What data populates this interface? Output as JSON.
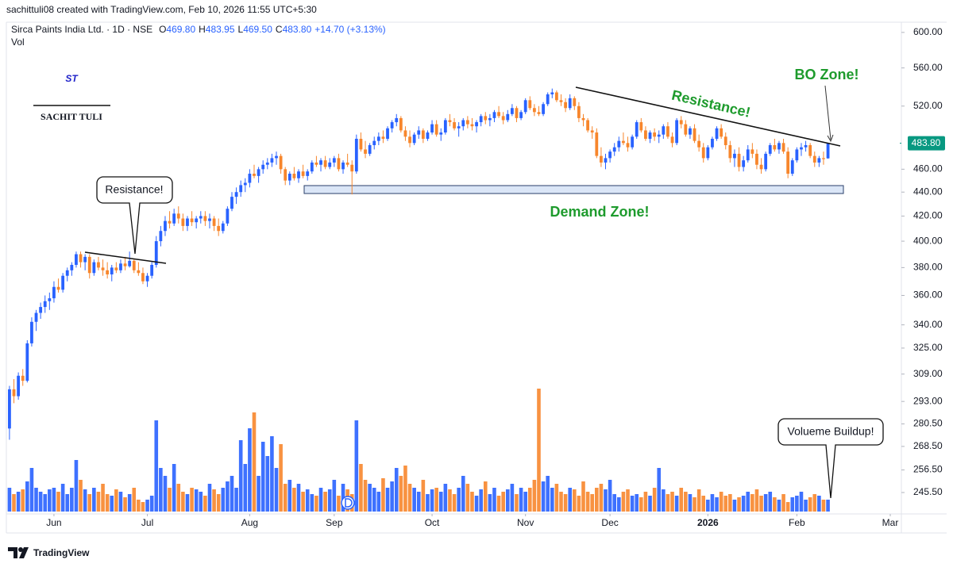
{
  "header": {
    "created": "sachittuli08 created with TradingView.com, Feb 10, 2026 11:55 UTC+5:30"
  },
  "logo": {
    "mark": "ST",
    "name": "SACHIT TULI"
  },
  "footer": {
    "brand": "TradingView"
  },
  "annotations": {
    "resistance_left": "Resistance!",
    "resistance_right": "Resistance!",
    "bo_zone": "BO Zone!",
    "demand_zone": "Demand Zone!",
    "volume_buildup": "Volueme Buildup!"
  },
  "chart_data": {
    "type": "candlestick",
    "title": "Sirca Paints India Ltd. · 1D · NSE",
    "ohlc_legend": [
      {
        "key": "O",
        "value": 469.8,
        "label": "469.80"
      },
      {
        "key": "H",
        "value": 483.95,
        "label": "483.95"
      },
      {
        "key": "L",
        "value": 469.5,
        "label": "469.50"
      },
      {
        "key": "C",
        "value": 483.8,
        "label": "483.80"
      }
    ],
    "change": "+14.70 (+3.13%)",
    "volume_label": "Vol",
    "up_color": "#2962ff",
    "down_color": "#f7862c",
    "log_scale": true,
    "grid": false,
    "xlim": [
      -0.7,
      200.5
    ],
    "xticks": [
      {
        "value": 10,
        "label": "Jun"
      },
      {
        "value": 31,
        "label": "Jul"
      },
      {
        "value": 54,
        "label": "Aug"
      },
      {
        "value": 73,
        "label": "Sep"
      },
      {
        "value": 95,
        "label": "Oct"
      },
      {
        "value": 116,
        "label": "Nov"
      },
      {
        "value": 135,
        "label": "Dec"
      },
      {
        "value": 157,
        "label": "2026"
      },
      {
        "value": 177,
        "label": "Feb"
      },
      {
        "value": 198,
        "label": "Mar"
      }
    ],
    "ylim": [
      235.5,
      612
    ],
    "yticks": [
      {
        "value": 600,
        "label": "600.00"
      },
      {
        "value": 560,
        "label": "560.00"
      },
      {
        "value": 520,
        "label": "520.00"
      },
      {
        "value": 460,
        "label": "460.00"
      },
      {
        "value": 440,
        "label": "440.00"
      },
      {
        "value": 420,
        "label": "420.00"
      },
      {
        "value": 400,
        "label": "400.00"
      },
      {
        "value": 380,
        "label": "380.00"
      },
      {
        "value": 360,
        "label": "360.00"
      },
      {
        "value": 340,
        "label": "340.00"
      },
      {
        "value": 325,
        "label": "325.00"
      },
      {
        "value": 309,
        "label": "309.00"
      },
      {
        "value": 293,
        "label": "293.00"
      },
      {
        "value": 280.5,
        "label": "280.50"
      },
      {
        "value": 268.5,
        "label": "268.50"
      },
      {
        "value": 256.5,
        "label": "256.50"
      },
      {
        "value": 245.5,
        "label": "245.50"
      }
    ],
    "last_price": {
      "value": 483.8,
      "label": "483.80",
      "color": "#089981"
    },
    "candles": [
      [
        278,
        302,
        272,
        300
      ],
      [
        300,
        306,
        292,
        296
      ],
      [
        296,
        310,
        294,
        308
      ],
      [
        308,
        312,
        302,
        305
      ],
      [
        305,
        330,
        304,
        328
      ],
      [
        328,
        345,
        326,
        342
      ],
      [
        342,
        350,
        336,
        348
      ],
      [
        348,
        355,
        344,
        352
      ],
      [
        352,
        360,
        348,
        356
      ],
      [
        356,
        362,
        350,
        358
      ],
      [
        358,
        370,
        355,
        366
      ],
      [
        366,
        372,
        362,
        364
      ],
      [
        364,
        376,
        362,
        374
      ],
      [
        374,
        380,
        370,
        378
      ],
      [
        378,
        384,
        374,
        382
      ],
      [
        382,
        392,
        380,
        390
      ],
      [
        390,
        392,
        380,
        384
      ],
      [
        384,
        390,
        378,
        388
      ],
      [
        388,
        390,
        372,
        376
      ],
      [
        376,
        386,
        374,
        384
      ],
      [
        384,
        388,
        378,
        380
      ],
      [
        380,
        386,
        374,
        378
      ],
      [
        378,
        384,
        372,
        375
      ],
      [
        375,
        382,
        370,
        380
      ],
      [
        380,
        384,
        376,
        378
      ],
      [
        378,
        386,
        376,
        383
      ],
      [
        383,
        388,
        378,
        381
      ],
      [
        381,
        392,
        380,
        385
      ],
      [
        385,
        386,
        376,
        378
      ],
      [
        378,
        384,
        374,
        376
      ],
      [
        376,
        380,
        368,
        370
      ],
      [
        370,
        376,
        366,
        374
      ],
      [
        374,
        384,
        372,
        382
      ],
      [
        382,
        404,
        380,
        400
      ],
      [
        400,
        412,
        396,
        408
      ],
      [
        408,
        420,
        404,
        416
      ],
      [
        416,
        424,
        410,
        414
      ],
      [
        414,
        426,
        412,
        422
      ],
      [
        422,
        428,
        414,
        418
      ],
      [
        418,
        422,
        408,
        412
      ],
      [
        412,
        420,
        408,
        418
      ],
      [
        418,
        424,
        412,
        415
      ],
      [
        415,
        420,
        410,
        418
      ],
      [
        418,
        424,
        414,
        420
      ],
      [
        420,
        424,
        412,
        416
      ],
      [
        416,
        422,
        410,
        418
      ],
      [
        418,
        420,
        408,
        412
      ],
      [
        412,
        418,
        404,
        408
      ],
      [
        408,
        416,
        406,
        414
      ],
      [
        414,
        428,
        412,
        426
      ],
      [
        426,
        440,
        424,
        436
      ],
      [
        436,
        444,
        430,
        440
      ],
      [
        440,
        450,
        436,
        446
      ],
      [
        446,
        452,
        440,
        448
      ],
      [
        448,
        460,
        444,
        456
      ],
      [
        456,
        464,
        452,
        454
      ],
      [
        454,
        462,
        448,
        460
      ],
      [
        460,
        468,
        456,
        464
      ],
      [
        464,
        470,
        460,
        466
      ],
      [
        466,
        474,
        462,
        470
      ],
      [
        470,
        476,
        464,
        472
      ],
      [
        472,
        474,
        456,
        460
      ],
      [
        460,
        462,
        446,
        450
      ],
      [
        450,
        458,
        446,
        456
      ],
      [
        456,
        462,
        450,
        452
      ],
      [
        452,
        460,
        448,
        458
      ],
      [
        458,
        464,
        452,
        454
      ],
      [
        454,
        460,
        450,
        458
      ],
      [
        458,
        468,
        456,
        466
      ],
      [
        466,
        472,
        462,
        464
      ],
      [
        464,
        470,
        458,
        468
      ],
      [
        468,
        472,
        460,
        462
      ],
      [
        462,
        470,
        460,
        466
      ],
      [
        466,
        472,
        462,
        470
      ],
      [
        470,
        474,
        458,
        460
      ],
      [
        460,
        468,
        456,
        466
      ],
      [
        466,
        474,
        462,
        464
      ],
      [
        464,
        468,
        438,
        458
      ],
      [
        458,
        492,
        456,
        488
      ],
      [
        488,
        494,
        476,
        478
      ],
      [
        478,
        486,
        470,
        474
      ],
      [
        474,
        484,
        472,
        482
      ],
      [
        482,
        490,
        478,
        486
      ],
      [
        486,
        494,
        482,
        490
      ],
      [
        490,
        496,
        484,
        488
      ],
      [
        488,
        500,
        486,
        498
      ],
      [
        498,
        506,
        494,
        504
      ],
      [
        504,
        512,
        500,
        508
      ],
      [
        508,
        510,
        494,
        496
      ],
      [
        496,
        500,
        486,
        490
      ],
      [
        490,
        496,
        480,
        484
      ],
      [
        484,
        494,
        482,
        492
      ],
      [
        492,
        500,
        488,
        496
      ],
      [
        496,
        498,
        484,
        488
      ],
      [
        488,
        496,
        486,
        494
      ],
      [
        494,
        506,
        492,
        502
      ],
      [
        502,
        506,
        490,
        492
      ],
      [
        492,
        498,
        486,
        494
      ],
      [
        494,
        508,
        492,
        506
      ],
      [
        506,
        512,
        500,
        504
      ],
      [
        504,
        508,
        496,
        498
      ],
      [
        498,
        504,
        490,
        500
      ],
      [
        500,
        508,
        496,
        506
      ],
      [
        506,
        510,
        498,
        502
      ],
      [
        502,
        508,
        496,
        500
      ],
      [
        500,
        506,
        494,
        504
      ],
      [
        504,
        512,
        500,
        510
      ],
      [
        510,
        514,
        502,
        506
      ],
      [
        506,
        512,
        500,
        508
      ],
      [
        508,
        516,
        504,
        514
      ],
      [
        514,
        520,
        508,
        510
      ],
      [
        510,
        514,
        502,
        506
      ],
      [
        506,
        516,
        504,
        512
      ],
      [
        512,
        522,
        510,
        518
      ],
      [
        518,
        520,
        504,
        508
      ],
      [
        508,
        516,
        506,
        514
      ],
      [
        514,
        528,
        512,
        526
      ],
      [
        526,
        530,
        516,
        518
      ],
      [
        518,
        522,
        510,
        514
      ],
      [
        514,
        520,
        510,
        512
      ],
      [
        512,
        524,
        510,
        522
      ],
      [
        522,
        534,
        520,
        532
      ],
      [
        532,
        538,
        528,
        534
      ],
      [
        534,
        536,
        524,
        526
      ],
      [
        526,
        532,
        520,
        524
      ],
      [
        524,
        528,
        514,
        518
      ],
      [
        518,
        532,
        516,
        528
      ],
      [
        528,
        530,
        516,
        520
      ],
      [
        520,
        524,
        504,
        508
      ],
      [
        508,
        512,
        500,
        506
      ],
      [
        506,
        508,
        494,
        496
      ],
      [
        496,
        500,
        488,
        494
      ],
      [
        494,
        498,
        470,
        472
      ],
      [
        472,
        480,
        462,
        466
      ],
      [
        466,
        474,
        460,
        470
      ],
      [
        470,
        478,
        466,
        476
      ],
      [
        476,
        484,
        472,
        480
      ],
      [
        480,
        490,
        476,
        486
      ],
      [
        486,
        494,
        482,
        484
      ],
      [
        484,
        490,
        476,
        480
      ],
      [
        480,
        492,
        478,
        490
      ],
      [
        490,
        506,
        488,
        504
      ],
      [
        504,
        508,
        494,
        496
      ],
      [
        496,
        500,
        486,
        488
      ],
      [
        488,
        496,
        484,
        494
      ],
      [
        494,
        498,
        486,
        490
      ],
      [
        490,
        496,
        484,
        492
      ],
      [
        492,
        502,
        488,
        500
      ],
      [
        500,
        504,
        488,
        490
      ],
      [
        490,
        494,
        480,
        484
      ],
      [
        484,
        508,
        482,
        506
      ],
      [
        506,
        510,
        498,
        502
      ],
      [
        502,
        506,
        490,
        492
      ],
      [
        492,
        500,
        488,
        498
      ],
      [
        498,
        502,
        484,
        486
      ],
      [
        486,
        492,
        476,
        480
      ],
      [
        480,
        484,
        466,
        470
      ],
      [
        470,
        482,
        468,
        480
      ],
      [
        480,
        490,
        478,
        488
      ],
      [
        488,
        500,
        486,
        498
      ],
      [
        498,
        502,
        488,
        490
      ],
      [
        490,
        494,
        478,
        482
      ],
      [
        482,
        486,
        466,
        470
      ],
      [
        470,
        478,
        462,
        474
      ],
      [
        474,
        480,
        458,
        462
      ],
      [
        462,
        472,
        458,
        468
      ],
      [
        468,
        482,
        466,
        478
      ],
      [
        478,
        484,
        470,
        474
      ],
      [
        474,
        478,
        460,
        464
      ],
      [
        464,
        470,
        456,
        460
      ],
      [
        460,
        476,
        458,
        474
      ],
      [
        474,
        484,
        472,
        482
      ],
      [
        482,
        488,
        476,
        478
      ],
      [
        478,
        486,
        474,
        484
      ],
      [
        484,
        488,
        474,
        476
      ],
      [
        476,
        480,
        452,
        456
      ],
      [
        456,
        470,
        454,
        468
      ],
      [
        468,
        480,
        466,
        478
      ],
      [
        478,
        484,
        472,
        480
      ],
      [
        480,
        486,
        476,
        482
      ],
      [
        482,
        484,
        470,
        472
      ],
      [
        472,
        476,
        462,
        466
      ],
      [
        466,
        472,
        462,
        470
      ],
      [
        470,
        476,
        464,
        469.1
      ],
      [
        469.8,
        483.95,
        469.5,
        483.8
      ]
    ],
    "volume": [
      30,
      22,
      25,
      28,
      38,
      55,
      30,
      25,
      22,
      28,
      30,
      25,
      35,
      22,
      30,
      65,
      40,
      28,
      22,
      30,
      25,
      35,
      22,
      20,
      28,
      25,
      18,
      22,
      30,
      15,
      12,
      15,
      20,
      115,
      55,
      45,
      30,
      60,
      35,
      25,
      22,
      30,
      28,
      25,
      20,
      35,
      28,
      22,
      30,
      38,
      45,
      30,
      90,
      60,
      105,
      125,
      45,
      88,
      70,
      95,
      55,
      85,
      35,
      40,
      30,
      35,
      25,
      28,
      22,
      20,
      30,
      25,
      28,
      40,
      20,
      35,
      28,
      22,
      115,
      60,
      40,
      35,
      30,
      25,
      42,
      30,
      38,
      55,
      45,
      58,
      35,
      30,
      25,
      40,
      22,
      28,
      30,
      25,
      35,
      28,
      22,
      30,
      45,
      35,
      25,
      20,
      28,
      38,
      22,
      30,
      20,
      25,
      28,
      35,
      22,
      30,
      25,
      30,
      40,
      155,
      38,
      45,
      30,
      35,
      25,
      22,
      30,
      28,
      20,
      38,
      25,
      22,
      30,
      35,
      28,
      40,
      22,
      18,
      25,
      28,
      20,
      22,
      18,
      25,
      20,
      30,
      55,
      28,
      22,
      25,
      20,
      30,
      25,
      22,
      18,
      28,
      20,
      15,
      22,
      18,
      25,
      20,
      22,
      15,
      18,
      20,
      25,
      22,
      28,
      20,
      22,
      25,
      18,
      15,
      22,
      12,
      18,
      20,
      25,
      15,
      18,
      22,
      20,
      15,
      15
    ]
  }
}
